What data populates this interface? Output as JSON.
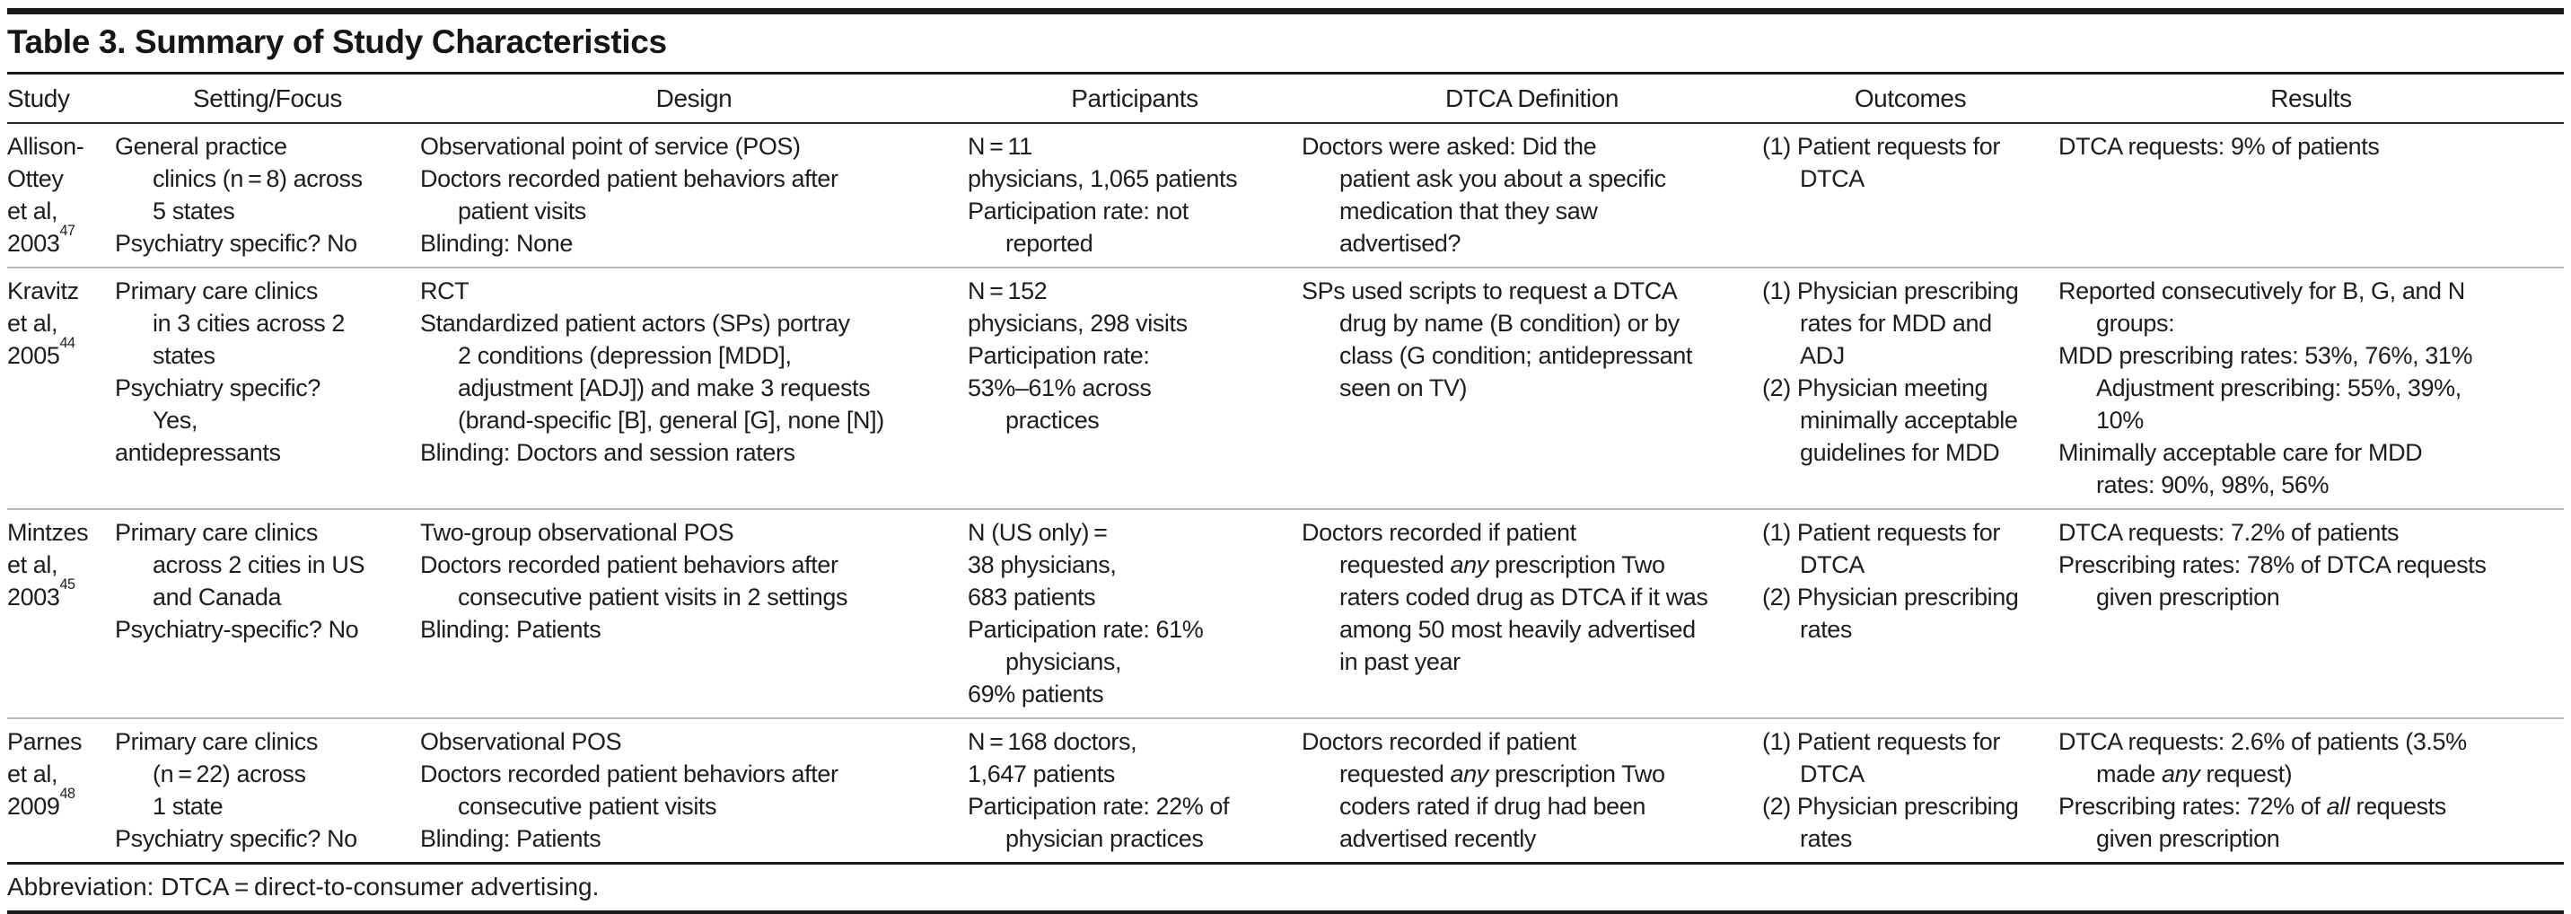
{
  "meta": {
    "title": "Table 3. Summary of Study Characteristics",
    "footnote": "Abbreviation: DTCA = direct-to-consumer advertising."
  },
  "colors": {
    "text": "#1d1d1f",
    "rule_dark": "#1b1b1b",
    "rule_gray": "#b9b9b9",
    "background": "#ffffff"
  },
  "table": {
    "columns": [
      "Study",
      "Setting/Focus",
      "Design",
      "Participants",
      "DTCA Definition",
      "Outcomes",
      "Results"
    ],
    "column_keys": [
      "study",
      "setting",
      "design",
      "participants",
      "dtca",
      "outcomes",
      "results"
    ],
    "rows": [
      {
        "study": [
          "Allison-",
          "Ottey",
          "et al,",
          "2003^47^"
        ],
        "setting": [
          "General practice",
          {
            "t": "clinics (n = 8) across",
            "ind": true
          },
          {
            "t": "5 states",
            "ind": true
          },
          "Psychiatry specific? No"
        ],
        "design": [
          "Observational point of service (POS)",
          "Doctors recorded patient behaviors after",
          {
            "t": "patient visits",
            "ind": true
          },
          "Blinding: None"
        ],
        "participants": [
          "N = 11",
          "physicians, 1,065 patients",
          "Participation rate: not",
          {
            "t": "reported",
            "ind": true
          }
        ],
        "dtca": [
          "Doctors were asked: Did the",
          {
            "t": "patient ask you about a specific",
            "ind": true
          },
          {
            "t": "medication that they saw",
            "ind": true
          },
          {
            "t": "advertised?",
            "ind": true
          }
        ],
        "outcomes": [
          "(1) Patient requests for",
          {
            "t": "DTCA",
            "ind": true
          }
        ],
        "results": [
          "DTCA requests: 9% of patients"
        ]
      },
      {
        "study": [
          "Kravitz",
          "et al,",
          "2005^44^"
        ],
        "setting": [
          "Primary care clinics",
          {
            "t": "in 3 cities across 2",
            "ind": true
          },
          {
            "t": "states",
            "ind": true
          },
          "Psychiatry specific?",
          {
            "t": "Yes,",
            "ind": true
          },
          "antidepressants"
        ],
        "design": [
          "RCT",
          "Standardized patient actors (SPs) portray",
          {
            "t": "2 conditions (depression [MDD],",
            "ind": true
          },
          {
            "t": "adjustment [ADJ]) and make 3 requests",
            "ind": true
          },
          {
            "t": "(brand-specific [B], general [G], none [N])",
            "ind": true
          },
          "Blinding: Doctors and session raters"
        ],
        "participants": [
          "N = 152",
          "physicians, 298 visits",
          "Participation rate:",
          "53%–61% across",
          {
            "t": "practices",
            "ind": true
          }
        ],
        "dtca": [
          "SPs used scripts to request a DTCA",
          {
            "t": "drug by name (B condition) or by",
            "ind": true
          },
          {
            "t": "class (G condition; antidepressant",
            "ind": true
          },
          {
            "t": "seen on TV)",
            "ind": true
          }
        ],
        "outcomes": [
          "(1) Physician prescribing",
          {
            "t": "rates for MDD and",
            "ind": true
          },
          {
            "t": "ADJ",
            "ind": true
          },
          "(2) Physician meeting",
          {
            "t": "minimally acceptable",
            "ind": true
          },
          {
            "t": "guidelines for MDD",
            "ind": true
          }
        ],
        "results": [
          "Reported consecutively for B, G, and N",
          {
            "t": "groups:",
            "ind": true
          },
          "MDD prescribing rates: 53%, 76%, 31%",
          {
            "t": "Adjustment prescribing: 55%, 39%,",
            "ind": true
          },
          {
            "t": "10%",
            "ind": true
          },
          "Minimally acceptable care for MDD",
          {
            "t": "rates: 90%, 98%, 56%",
            "ind": true
          }
        ]
      },
      {
        "study": [
          "Mintzes",
          "et al,",
          "2003^45^"
        ],
        "setting": [
          "Primary care clinics",
          {
            "t": "across 2 cities in US",
            "ind": true
          },
          {
            "t": "and Canada",
            "ind": true
          },
          "Psychiatry-specific? No"
        ],
        "design": [
          "Two-group observational POS",
          "Doctors recorded patient behaviors after",
          {
            "t": "consecutive patient visits in 2 settings",
            "ind": true
          },
          "Blinding: Patients"
        ],
        "participants": [
          "N (US only) =",
          "38 physicians,",
          "683 patients",
          "Participation rate: 61%",
          {
            "t": "physicians,",
            "ind": true
          },
          "69% patients"
        ],
        "dtca": [
          "Doctors recorded if patient",
          {
            "t": "requested *any* prescription Two",
            "ind": true
          },
          {
            "t": "raters coded drug as DTCA if it was",
            "ind": true
          },
          {
            "t": "among 50 most heavily advertised",
            "ind": true
          },
          {
            "t": "in past year",
            "ind": true
          }
        ],
        "outcomes": [
          "(1) Patient requests for",
          {
            "t": "DTCA",
            "ind": true
          },
          "(2) Physician prescribing",
          {
            "t": "rates",
            "ind": true
          }
        ],
        "results": [
          "DTCA requests: 7.2% of patients",
          "Prescribing rates: 78% of DTCA requests",
          {
            "t": "given prescription",
            "ind": true
          }
        ]
      },
      {
        "study": [
          "Parnes",
          "et al,",
          "2009^48^"
        ],
        "setting": [
          "Primary care clinics",
          {
            "t": "(n = 22) across",
            "ind": true
          },
          {
            "t": "1 state",
            "ind": true
          },
          "Psychiatry specific? No"
        ],
        "design": [
          "Observational POS",
          "Doctors recorded patient behaviors after",
          {
            "t": "consecutive patient visits",
            "ind": true
          },
          "Blinding: Patients"
        ],
        "participants": [
          "N = 168 doctors,",
          "1,647 patients",
          "Participation rate: 22% of",
          {
            "t": "physician practices",
            "ind": true
          }
        ],
        "dtca": [
          "Doctors recorded if patient",
          {
            "t": "requested *any* prescription Two",
            "ind": true
          },
          {
            "t": "coders rated if drug had been",
            "ind": true
          },
          {
            "t": "advertised recently",
            "ind": true
          }
        ],
        "outcomes": [
          "(1) Patient requests for",
          {
            "t": "DTCA",
            "ind": true
          },
          "(2) Physician prescribing",
          {
            "t": "rates",
            "ind": true
          }
        ],
        "results": [
          "DTCA requests: 2.6% of patients (3.5%",
          {
            "t": "made *any* request)",
            "ind": true
          },
          "Prescribing rates: 72% of *all* requests",
          {
            "t": "given prescription",
            "ind": true
          }
        ]
      }
    ]
  }
}
